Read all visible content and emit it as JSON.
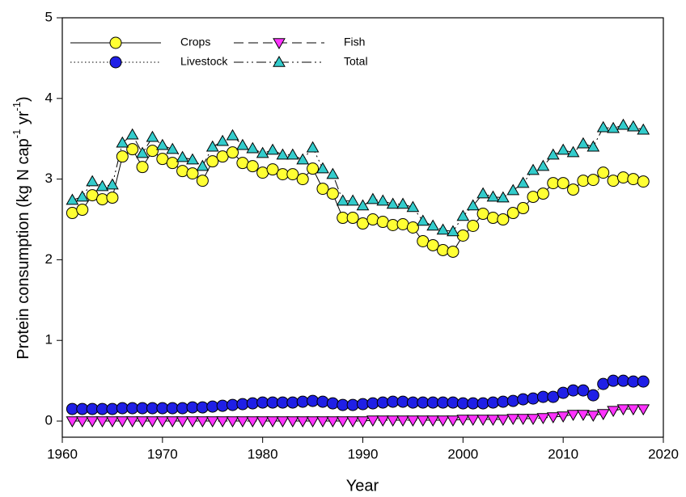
{
  "chart_data": {
    "type": "line",
    "xlabel": "Year",
    "ylabel": [
      "Protein consumption (kg N cap",
      "-1",
      " yr",
      "-1",
      ")"
    ],
    "xlim": [
      1960,
      2020
    ],
    "xticks": [
      1960,
      1970,
      1980,
      1990,
      2000,
      2010,
      2020
    ],
    "ylim": [
      -0.2,
      5
    ],
    "yticks": [
      0,
      1,
      2,
      3,
      4,
      5
    ],
    "legend": "upper left",
    "x": [
      1961,
      1962,
      1963,
      1964,
      1965,
      1966,
      1967,
      1968,
      1969,
      1970,
      1971,
      1972,
      1973,
      1974,
      1975,
      1976,
      1977,
      1978,
      1979,
      1980,
      1981,
      1982,
      1983,
      1984,
      1985,
      1986,
      1987,
      1988,
      1989,
      1990,
      1991,
      1992,
      1993,
      1994,
      1995,
      1996,
      1997,
      1998,
      1999,
      2000,
      2001,
      2002,
      2003,
      2004,
      2005,
      2006,
      2007,
      2008,
      2009,
      2010,
      2011,
      2012,
      2013,
      2014,
      2015,
      2016,
      2017,
      2018
    ],
    "series": [
      {
        "name": "Crops",
        "color": "#ffff33",
        "line": "solid",
        "marker": "circle",
        "values": [
          2.58,
          2.62,
          2.8,
          2.75,
          2.77,
          3.28,
          3.37,
          3.15,
          3.35,
          3.25,
          3.2,
          3.1,
          3.07,
          2.98,
          3.22,
          3.28,
          3.33,
          3.2,
          3.16,
          3.08,
          3.12,
          3.06,
          3.06,
          3.0,
          3.13,
          2.88,
          2.82,
          2.52,
          2.52,
          2.45,
          2.5,
          2.47,
          2.43,
          2.44,
          2.4,
          2.23,
          2.18,
          2.12,
          2.1,
          2.3,
          2.42,
          2.57,
          2.52,
          2.5,
          2.58,
          2.64,
          2.78,
          2.82,
          2.95,
          2.95,
          2.87,
          2.98,
          2.99,
          3.08,
          2.98,
          3.02,
          3.0,
          2.97
        ]
      },
      {
        "name": "Livestock",
        "color": "#1f1fe6",
        "line": "dotted",
        "marker": "circle",
        "values": [
          0.15,
          0.15,
          0.15,
          0.15,
          0.15,
          0.16,
          0.16,
          0.16,
          0.16,
          0.16,
          0.16,
          0.16,
          0.17,
          0.17,
          0.18,
          0.19,
          0.2,
          0.21,
          0.22,
          0.23,
          0.23,
          0.23,
          0.23,
          0.24,
          0.25,
          0.24,
          0.22,
          0.2,
          0.2,
          0.21,
          0.22,
          0.23,
          0.24,
          0.24,
          0.23,
          0.23,
          0.23,
          0.23,
          0.23,
          0.22,
          0.22,
          0.22,
          0.23,
          0.24,
          0.25,
          0.27,
          0.28,
          0.3,
          0.3,
          0.35,
          0.38,
          0.38,
          0.32,
          0.46,
          0.5,
          0.5,
          0.49,
          0.49
        ]
      },
      {
        "name": "Fish",
        "color": "#ff33ff",
        "line": "dashed",
        "marker": "triangle-down",
        "values": [
          0.0,
          0.0,
          0.0,
          0.0,
          0.0,
          0.0,
          0.0,
          0.0,
          0.0,
          0.0,
          0.0,
          0.0,
          0.0,
          0.0,
          0.0,
          0.0,
          0.0,
          0.0,
          0.0,
          0.0,
          0.0,
          0.0,
          0.0,
          0.0,
          0.0,
          0.0,
          0.0,
          0.0,
          0.0,
          0.0,
          0.01,
          0.01,
          0.01,
          0.01,
          0.01,
          0.01,
          0.01,
          0.01,
          0.01,
          0.02,
          0.02,
          0.02,
          0.02,
          0.02,
          0.03,
          0.03,
          0.03,
          0.04,
          0.05,
          0.06,
          0.08,
          0.08,
          0.07,
          0.09,
          0.13,
          0.15,
          0.15,
          0.15
        ]
      },
      {
        "name": "Total",
        "color": "#33cccc",
        "line": "dashdotdot",
        "marker": "triangle-up",
        "values": [
          2.74,
          2.78,
          2.97,
          2.91,
          2.93,
          3.45,
          3.55,
          3.32,
          3.52,
          3.42,
          3.37,
          3.27,
          3.24,
          3.16,
          3.4,
          3.47,
          3.54,
          3.42,
          3.38,
          3.32,
          3.36,
          3.3,
          3.3,
          3.24,
          3.39,
          3.13,
          3.06,
          2.73,
          2.73,
          2.67,
          2.75,
          2.73,
          2.69,
          2.69,
          2.65,
          2.48,
          2.42,
          2.37,
          2.35,
          2.54,
          2.67,
          2.82,
          2.78,
          2.77,
          2.86,
          2.95,
          3.11,
          3.16,
          3.3,
          3.36,
          3.33,
          3.44,
          3.4,
          3.64,
          3.63,
          3.67,
          3.65,
          3.61
        ]
      }
    ]
  }
}
